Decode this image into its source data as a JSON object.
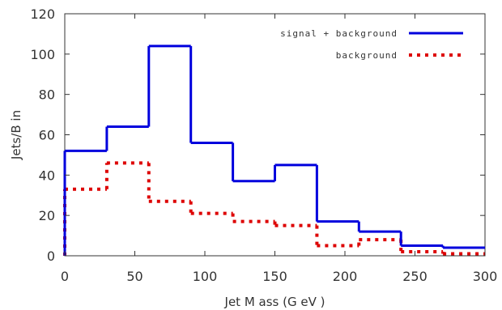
{
  "chart_data": {
    "type": "step",
    "xlabel": "Jet M ass (G eV )",
    "ylabel": "Jets/B in",
    "xlim": [
      0,
      300
    ],
    "ylim": [
      0,
      120
    ],
    "xticks": [
      0,
      50,
      100,
      150,
      200,
      250,
      300
    ],
    "yticks": [
      0,
      20,
      40,
      60,
      80,
      100,
      120
    ],
    "xtick_labels": [
      "0",
      "50",
      "100",
      "150",
      "200",
      "250",
      "300"
    ],
    "ytick_labels": [
      "0",
      "20",
      "40",
      "60",
      "80",
      "100",
      "120"
    ],
    "grid": false,
    "legend_position": "top-right",
    "bin_edges": [
      0,
      30,
      60,
      90,
      120,
      150,
      180,
      210,
      240,
      270,
      300
    ],
    "series": [
      {
        "name": "signal + background",
        "color": "#0000dd",
        "style": "solid",
        "values": [
          52,
          64,
          104,
          56,
          37,
          45,
          17,
          12,
          5,
          4
        ]
      },
      {
        "name": "background",
        "color": "#dd0000",
        "style": "dotted",
        "values": [
          33,
          46,
          27,
          21,
          17,
          15,
          5,
          8,
          2,
          1
        ]
      }
    ]
  }
}
